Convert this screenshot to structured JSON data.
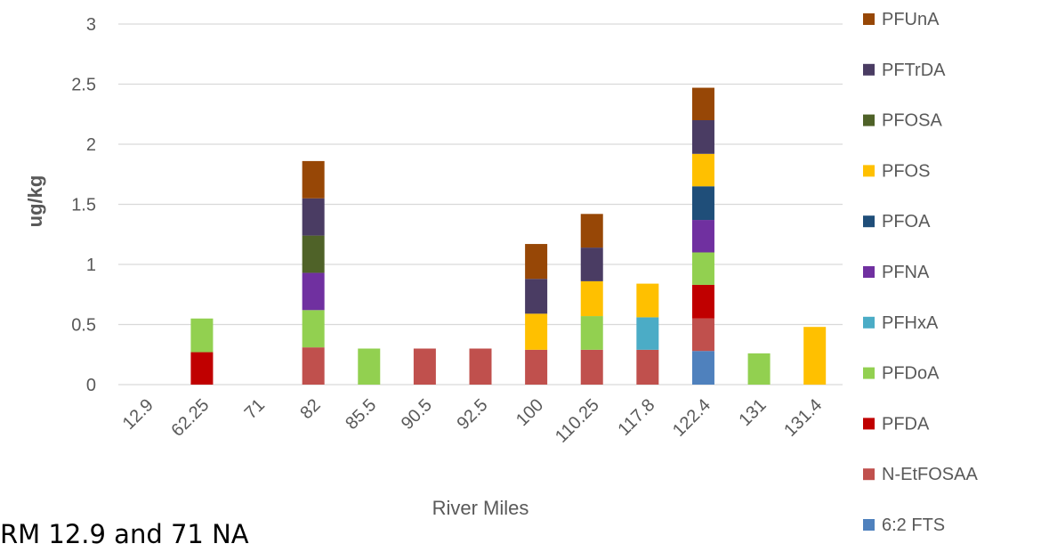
{
  "chart_data": {
    "type": "bar",
    "stacked": true,
    "xlabel": "River Miles",
    "ylabel": "ug/kg",
    "ylim": [
      0,
      3
    ],
    "yticks": [
      "0",
      "0.5",
      "1",
      "1.5",
      "2",
      "2.5",
      "3"
    ],
    "grid": true,
    "legend_position": "right",
    "categories": [
      "12.9",
      "62.25",
      "71",
      "82",
      "85.5",
      "90.5",
      "92.5",
      "100",
      "110.25",
      "117.8",
      "122.4",
      "131",
      "131.4"
    ],
    "series": [
      {
        "name": "6:2 FTS",
        "color": "#4f81bd",
        "values": [
          0,
          0,
          0,
          0,
          0,
          0,
          0,
          0,
          0,
          0,
          0.28,
          0,
          0
        ]
      },
      {
        "name": "N-EtFOSAA",
        "color": "#c0504d",
        "values": [
          0,
          0,
          0,
          0.31,
          0,
          0.3,
          0.3,
          0.29,
          0.29,
          0.29,
          0.27,
          0,
          0
        ]
      },
      {
        "name": "PFDA",
        "color": "#c00000",
        "values": [
          0,
          0.27,
          0,
          0,
          0,
          0,
          0,
          0,
          0,
          0,
          0.28,
          0,
          0
        ]
      },
      {
        "name": "PFDoA",
        "color": "#92d050",
        "values": [
          0,
          0.28,
          0,
          0.31,
          0.3,
          0,
          0,
          0,
          0.28,
          0,
          0.27,
          0.26,
          0
        ]
      },
      {
        "name": "PFHxA",
        "color": "#4bacc6",
        "values": [
          0,
          0,
          0,
          0,
          0,
          0,
          0,
          0,
          0,
          0.27,
          0,
          0,
          0
        ]
      },
      {
        "name": "PFNA",
        "color": "#7030a0",
        "values": [
          0,
          0,
          0,
          0.31,
          0,
          0,
          0,
          0,
          0,
          0,
          0.27,
          0,
          0
        ]
      },
      {
        "name": "PFOA",
        "color": "#1f4e79",
        "values": [
          0,
          0,
          0,
          0,
          0,
          0,
          0,
          0,
          0,
          0,
          0.28,
          0,
          0
        ]
      },
      {
        "name": "PFOS",
        "color": "#ffc000",
        "values": [
          0,
          0,
          0,
          0,
          0,
          0,
          0,
          0.3,
          0.29,
          0.28,
          0.27,
          0,
          0.48
        ]
      },
      {
        "name": "PFOSA",
        "color": "#4f6228",
        "values": [
          0,
          0,
          0,
          0.31,
          0,
          0,
          0,
          0,
          0,
          0,
          0,
          0,
          0
        ]
      },
      {
        "name": "PFTrDA",
        "color": "#4a3c63",
        "values": [
          0,
          0,
          0,
          0.31,
          0,
          0,
          0,
          0.29,
          0.28,
          0,
          0.28,
          0,
          0
        ]
      },
      {
        "name": "PFUnA",
        "color": "#974706",
        "values": [
          0,
          0,
          0,
          0.31,
          0,
          0,
          0,
          0.29,
          0.28,
          0,
          0.27,
          0,
          0
        ]
      }
    ]
  },
  "note": "RM 12.9 and 71 NA"
}
